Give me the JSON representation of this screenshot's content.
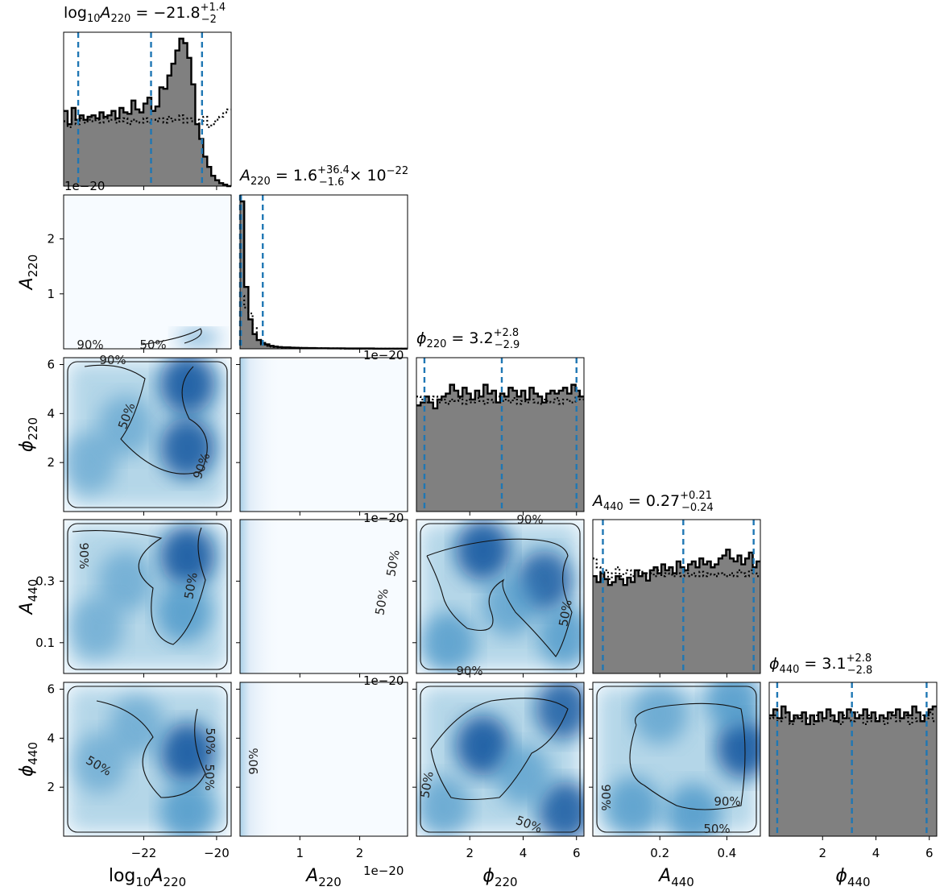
{
  "chart_data": {
    "type": "corner",
    "parameters": [
      {
        "key": "logA220",
        "label": "log10A220",
        "range": [
          -24.2,
          -19.6
        ],
        "ticks": [
          -22,
          -20
        ],
        "tick_labels": [
          "−22",
          "−20"
        ],
        "title": "log10A220 = −21.8 +1.4 −2",
        "median": -21.8,
        "q_low": -23.8,
        "q_high": -20.4
      },
      {
        "key": "A220",
        "label": "A220",
        "range": [
          0,
          2.8
        ],
        "ticks": [
          1,
          2
        ],
        "tick_labels": [
          "1",
          "2"
        ],
        "offset": "1e−20",
        "title": "A220 = 1.6 +36.4 −1.6 × 10−22",
        "median": 0.016,
        "q_low": 0.0,
        "q_high": 0.38
      },
      {
        "key": "phi220",
        "label": "ϕ220",
        "range": [
          0,
          6.28
        ],
        "ticks": [
          2,
          4,
          6
        ],
        "tick_labels": [
          "2",
          "4",
          "6"
        ],
        "title": "ϕ220 = 3.2 +2.8 −2.9",
        "median": 3.2,
        "q_low": 0.3,
        "q_high": 6.0
      },
      {
        "key": "A440",
        "label": "A440",
        "range": [
          0,
          0.5
        ],
        "ticks": [
          0.1,
          0.3
        ],
        "tick_labels": [
          "0.1",
          "0.3"
        ],
        "ticks_x": [
          0.2,
          0.4
        ],
        "tick_labels_x": [
          "0.2",
          "0.4"
        ],
        "title": "A440 = 0.27 +0.21 −0.24",
        "median": 0.27,
        "q_low": 0.03,
        "q_high": 0.48
      },
      {
        "key": "phi440",
        "label": "ϕ440",
        "range": [
          0,
          6.28
        ],
        "ticks": [
          2,
          4,
          6
        ],
        "tick_labels": [
          "2",
          "4",
          "6"
        ],
        "title": "ϕ440 = 3.1 +2.8 −2.8",
        "median": 3.1,
        "q_low": 0.3,
        "q_high": 5.9
      }
    ],
    "histograms": {
      "logA220": {
        "solid": [
          0.51,
          0.42,
          0.53,
          0.45,
          0.48,
          0.45,
          0.47,
          0.48,
          0.46,
          0.5,
          0.47,
          0.48,
          0.51,
          0.46,
          0.53,
          0.5,
          0.49,
          0.58,
          0.52,
          0.5,
          0.56,
          0.6,
          0.51,
          0.54,
          0.67,
          0.66,
          0.75,
          0.83,
          0.92,
          1.0,
          0.97,
          0.87,
          0.69,
          0.42,
          0.32,
          0.2,
          0.13,
          0.07,
          0.04,
          0.02,
          0.01,
          0.0
        ],
        "prior": [
          0.44,
          0.4,
          0.45,
          0.42,
          0.46,
          0.43,
          0.45,
          0.44,
          0.45,
          0.43,
          0.46,
          0.44,
          0.45,
          0.43,
          0.44,
          0.46,
          0.42,
          0.45,
          0.44,
          0.43,
          0.46,
          0.43,
          0.45,
          0.44,
          0.46,
          0.43,
          0.47,
          0.44,
          0.45,
          0.48,
          0.43,
          0.46,
          0.44,
          0.45,
          0.42,
          0.47,
          0.4,
          0.42,
          0.45,
          0.47,
          0.5,
          0.52
        ]
      },
      "A220": {
        "solid": [
          1.0,
          0.42,
          0.2,
          0.1,
          0.06,
          0.04,
          0.03,
          0.02,
          0.015,
          0.012,
          0.01,
          0.01,
          0.008,
          0.007,
          0.006,
          0.006,
          0.005,
          0.005,
          0.004,
          0.004,
          0.004,
          0.003,
          0.003,
          0.003,
          0.003,
          0.002,
          0.002,
          0.002,
          0.002,
          0.002,
          0.002,
          0.002,
          0.001,
          0.001,
          0.001,
          0.001,
          0.001,
          0.001,
          0.001,
          0.001
        ],
        "prior": [
          0.36,
          0.28,
          0.24,
          0.14,
          0.06,
          0.03,
          0.02,
          0.015,
          0.012,
          0.01,
          0.009,
          0.008,
          0.007,
          0.006,
          0.006,
          0.005,
          0.005,
          0.004,
          0.004,
          0.004,
          0.003,
          0.003,
          0.003,
          0.003,
          0.002,
          0.002,
          0.002,
          0.002,
          0.002,
          0.002,
          0.001,
          0.001,
          0.001,
          0.001,
          0.001,
          0.001,
          0.001,
          0.001,
          0.001,
          0.001
        ]
      },
      "phi220": {
        "solid": [
          0.72,
          0.74,
          0.78,
          0.74,
          0.7,
          0.76,
          0.78,
          0.8,
          0.86,
          0.82,
          0.78,
          0.84,
          0.8,
          0.76,
          0.82,
          0.78,
          0.86,
          0.8,
          0.82,
          0.74,
          0.8,
          0.78,
          0.84,
          0.82,
          0.78,
          0.82,
          0.76,
          0.84,
          0.8,
          0.78,
          0.74,
          0.8,
          0.82,
          0.8,
          0.82,
          0.84,
          0.8,
          0.86,
          0.82,
          0.78
        ],
        "prior": [
          0.78,
          0.76,
          0.74,
          0.76,
          0.78,
          0.74,
          0.76,
          0.73,
          0.76,
          0.75,
          0.77,
          0.73,
          0.76,
          0.74,
          0.77,
          0.75,
          0.73,
          0.76,
          0.74,
          0.78,
          0.75,
          0.76,
          0.74,
          0.77,
          0.73,
          0.75,
          0.74,
          0.76,
          0.74,
          0.73,
          0.76,
          0.75,
          0.74,
          0.77,
          0.73,
          0.76,
          0.75,
          0.74,
          0.78,
          0.76
        ]
      },
      "A440": {
        "solid": [
          0.66,
          0.62,
          0.68,
          0.64,
          0.6,
          0.62,
          0.66,
          0.64,
          0.6,
          0.65,
          0.62,
          0.7,
          0.66,
          0.68,
          0.63,
          0.7,
          0.72,
          0.68,
          0.74,
          0.7,
          0.72,
          0.68,
          0.76,
          0.72,
          0.7,
          0.74,
          0.76,
          0.72,
          0.78,
          0.74,
          0.76,
          0.72,
          0.74,
          0.78,
          0.8,
          0.84,
          0.78,
          0.76,
          0.8,
          0.74,
          0.78,
          0.82,
          0.72,
          0.76
        ],
        "prior": [
          0.78,
          0.72,
          0.66,
          0.7,
          0.64,
          0.68,
          0.72,
          0.66,
          0.68,
          0.7,
          0.66,
          0.68,
          0.7,
          0.66,
          0.68,
          0.68,
          0.66,
          0.7,
          0.66,
          0.68,
          0.67,
          0.66,
          0.68,
          0.66,
          0.7,
          0.66,
          0.68,
          0.66,
          0.69,
          0.66,
          0.68,
          0.67,
          0.66,
          0.68,
          0.67,
          0.66,
          0.68,
          0.66,
          0.7,
          0.68,
          0.66,
          0.7,
          0.68,
          0.66
        ]
      },
      "phi440": {
        "solid": [
          0.82,
          0.86,
          0.8,
          0.88,
          0.84,
          0.78,
          0.82,
          0.8,
          0.84,
          0.76,
          0.82,
          0.78,
          0.84,
          0.8,
          0.86,
          0.82,
          0.78,
          0.84,
          0.8,
          0.86,
          0.84,
          0.8,
          0.82,
          0.86,
          0.8,
          0.84,
          0.78,
          0.82,
          0.8,
          0.84,
          0.82,
          0.86,
          0.8,
          0.84,
          0.82,
          0.88,
          0.84,
          0.78,
          0.82,
          0.86,
          0.88
        ],
        "prior": [
          0.8,
          0.82,
          0.78,
          0.8,
          0.84,
          0.76,
          0.8,
          0.82,
          0.78,
          0.8,
          0.76,
          0.82,
          0.78,
          0.8,
          0.84,
          0.78,
          0.8,
          0.76,
          0.82,
          0.8,
          0.78,
          0.84,
          0.8,
          0.76,
          0.82,
          0.78,
          0.8,
          0.82,
          0.76,
          0.8,
          0.84,
          0.78,
          0.8,
          0.82,
          0.76,
          0.8,
          0.78,
          0.82,
          0.8,
          0.84,
          0.78
        ]
      }
    },
    "density_peaks": [
      {
        "pair": "logA220-A220",
        "blobs": [
          [
            -20.5,
            0.2,
            0.7
          ]
        ]
      },
      {
        "pair": "logA220-phi220",
        "blobs": [
          [
            -20.8,
            5.2,
            1.0
          ],
          [
            -20.8,
            2.6,
            0.95
          ],
          [
            -22.5,
            3.5,
            0.35
          ],
          [
            -23.5,
            2.0,
            0.3
          ]
        ]
      },
      {
        "pair": "logA220-A440",
        "blobs": [
          [
            -20.8,
            0.38,
            1.0
          ],
          [
            -20.9,
            0.2,
            0.8
          ],
          [
            -22.5,
            0.3,
            0.35
          ],
          [
            -23.3,
            0.15,
            0.3
          ]
        ]
      },
      {
        "pair": "logA220-phi440",
        "blobs": [
          [
            -20.8,
            3.4,
            1.0
          ],
          [
            -20.8,
            1.0,
            0.8
          ],
          [
            -22.2,
            4.5,
            0.35
          ],
          [
            -23.2,
            3.0,
            0.3
          ]
        ]
      },
      {
        "pair": "phi220-A440",
        "blobs": [
          [
            2.5,
            0.4,
            1.0
          ],
          [
            4.8,
            0.3,
            0.85
          ],
          [
            1.2,
            0.1,
            0.7
          ],
          [
            5.6,
            0.12,
            0.75
          ],
          [
            3.5,
            0.22,
            0.55
          ]
        ]
      },
      {
        "pair": "phi220-phi440",
        "blobs": [
          [
            2.5,
            3.7,
            1.0
          ],
          [
            5.5,
            5.2,
            0.85
          ],
          [
            5.6,
            1.0,
            0.9
          ],
          [
            1.0,
            1.2,
            0.5
          ],
          [
            4.0,
            2.5,
            0.55
          ]
        ]
      },
      {
        "pair": "A440-phi440",
        "blobs": [
          [
            0.45,
            3.6,
            1.0
          ],
          [
            0.42,
            5.6,
            0.8
          ],
          [
            0.12,
            1.2,
            0.7
          ],
          [
            0.3,
            0.9,
            0.8
          ],
          [
            0.2,
            5.0,
            0.5
          ]
        ]
      }
    ],
    "contour_labels": [
      "90%",
      "50%"
    ]
  }
}
